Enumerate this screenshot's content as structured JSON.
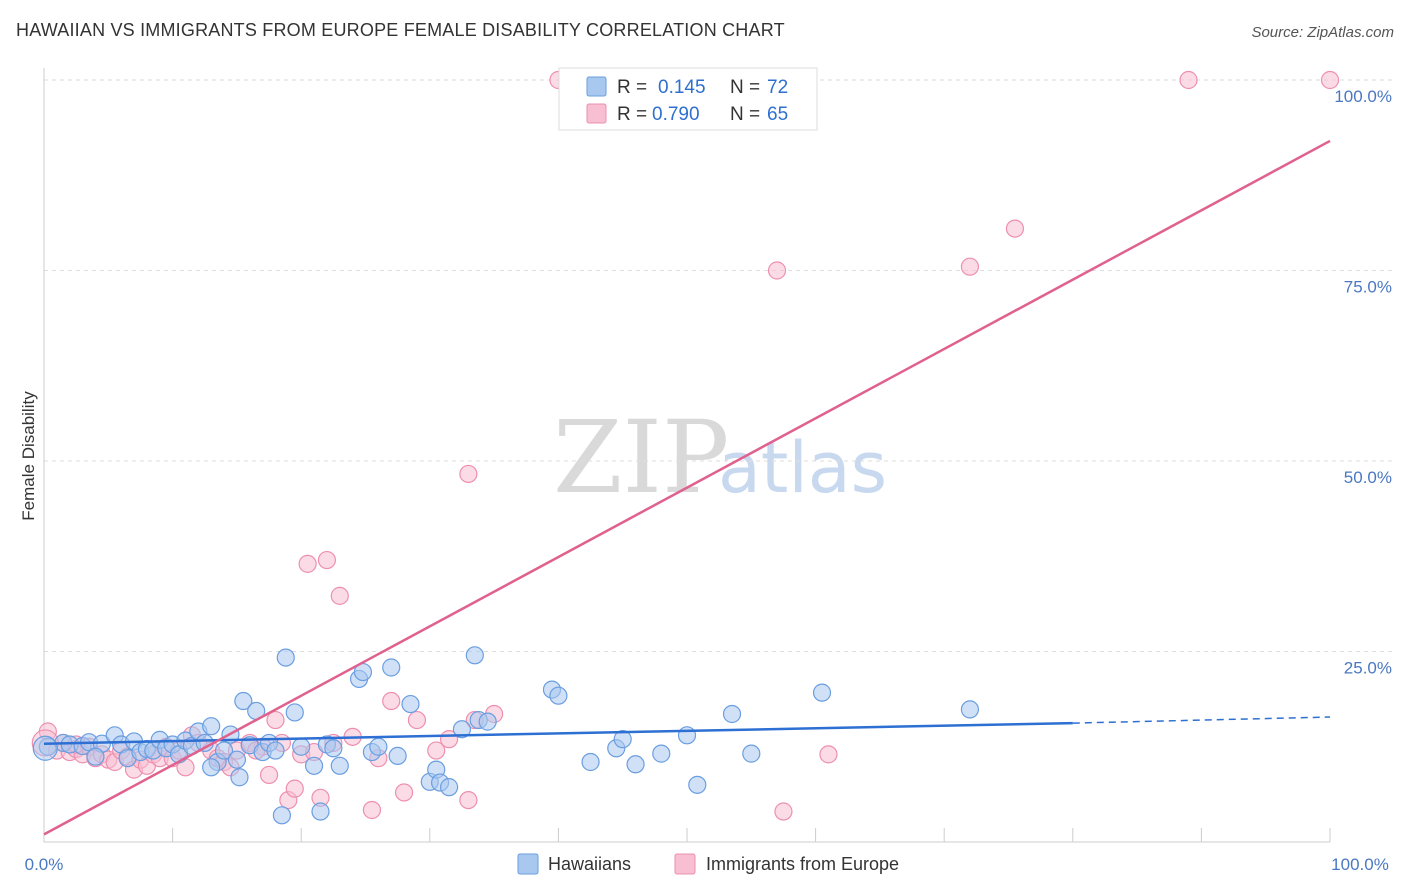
{
  "header": {
    "title": "HAWAIIAN VS IMMIGRANTS FROM EUROPE FEMALE DISABILITY CORRELATION CHART",
    "source": "Source: ZipAtlas.com"
  },
  "watermark": {
    "zip": "ZIP",
    "atlas": "atlas"
  },
  "colors": {
    "blue_fill": "#a9c8f0",
    "blue_stroke": "#6a9ee0",
    "blue_line": "#2d6fd2",
    "pink_fill": "#f7bfd1",
    "pink_stroke": "#ee8fb0",
    "pink_line": "#e0608e",
    "grid": "#dddddd",
    "tick_text": "#4a78c2"
  },
  "legend": {
    "rows": [
      {
        "r_label": "R =",
        "r_value": "0.145",
        "n_label": "N =",
        "n_value": "72"
      },
      {
        "r_label": "R =",
        "r_value": "0.790",
        "n_label": "N =",
        "n_value": "65"
      }
    ]
  },
  "bottom_legend": {
    "items": [
      {
        "label": "Hawaiians"
      },
      {
        "label": "Immigrants from Europe"
      }
    ]
  },
  "chart_data": {
    "type": "scatter",
    "title": "HAWAIIAN VS IMMIGRANTS FROM EUROPE FEMALE DISABILITY CORRELATION CHART",
    "xlabel": "",
    "ylabel": "Female Disability",
    "xlim": [
      0,
      100
    ],
    "ylim": [
      0,
      100
    ],
    "x_tick_labels": [
      "0.0%",
      "100.0%"
    ],
    "y_ticks": [
      {
        "value": 25,
        "label": "25.0%"
      },
      {
        "value": 50,
        "label": "50.0%"
      },
      {
        "value": 75,
        "label": "75.0%"
      },
      {
        "value": 100,
        "label": "100.0%"
      }
    ],
    "series": [
      {
        "name": "Hawaiians",
        "r": 0.145,
        "n": 72,
        "trend": {
          "x0": 0,
          "y0": 12.9,
          "x1": 80,
          "y1": 15.6,
          "dashed_to": 100,
          "dashed_y": 16.4
        },
        "points": [
          [
            0.3,
            12.5
          ],
          [
            1.5,
            13.0
          ],
          [
            2.0,
            12.8
          ],
          [
            3.0,
            12.6
          ],
          [
            3.5,
            13.1
          ],
          [
            4.5,
            12.9
          ],
          [
            5.5,
            14.0
          ],
          [
            6.0,
            12.8
          ],
          [
            6.5,
            11.0
          ],
          [
            7.0,
            13.2
          ],
          [
            7.5,
            11.8
          ],
          [
            8.0,
            12.2
          ],
          [
            8.5,
            12.0
          ],
          [
            9.0,
            13.4
          ],
          [
            9.5,
            12.3
          ],
          [
            10.0,
            12.8
          ],
          [
            10.5,
            11.5
          ],
          [
            11.0,
            13.3
          ],
          [
            11.5,
            12.6
          ],
          [
            12.0,
            14.5
          ],
          [
            12.5,
            13.0
          ],
          [
            13.0,
            15.2
          ],
          [
            13.5,
            10.5
          ],
          [
            14.0,
            12.0
          ],
          [
            14.5,
            14.1
          ],
          [
            15.0,
            10.8
          ],
          [
            15.5,
            18.5
          ],
          [
            16.0,
            12.7
          ],
          [
            16.5,
            17.2
          ],
          [
            17.0,
            11.8
          ],
          [
            17.5,
            13.0
          ],
          [
            18.0,
            12.0
          ],
          [
            18.8,
            24.2
          ],
          [
            19.5,
            17.0
          ],
          [
            20.0,
            12.5
          ],
          [
            21.0,
            10.0
          ],
          [
            22.0,
            12.8
          ],
          [
            22.5,
            12.3
          ],
          [
            23.0,
            10.0
          ],
          [
            24.5,
            21.4
          ],
          [
            24.8,
            22.3
          ],
          [
            25.5,
            11.8
          ],
          [
            27.0,
            22.9
          ],
          [
            27.5,
            11.3
          ],
          [
            28.5,
            18.1
          ],
          [
            30.0,
            7.9
          ],
          [
            30.5,
            9.5
          ],
          [
            30.8,
            7.8
          ],
          [
            31.5,
            7.2
          ],
          [
            32.5,
            14.8
          ],
          [
            33.5,
            24.5
          ],
          [
            33.8,
            16.0
          ],
          [
            34.5,
            15.8
          ],
          [
            39.5,
            20.0
          ],
          [
            40.0,
            19.2
          ],
          [
            42.5,
            10.5
          ],
          [
            44.5,
            12.3
          ],
          [
            45.0,
            13.5
          ],
          [
            46.0,
            10.2
          ],
          [
            48.0,
            11.6
          ],
          [
            50.0,
            14.0
          ],
          [
            50.8,
            7.5
          ],
          [
            53.5,
            16.8
          ],
          [
            55.0,
            11.6
          ],
          [
            60.5,
            19.6
          ],
          [
            72.0,
            17.4
          ],
          [
            13.0,
            9.8
          ],
          [
            15.2,
            8.5
          ],
          [
            18.5,
            3.5
          ],
          [
            21.5,
            4.0
          ],
          [
            26.0,
            12.5
          ],
          [
            4.0,
            11.2
          ]
        ]
      },
      {
        "name": "Immigrants from Europe",
        "r": 0.79,
        "n": 65,
        "trend": {
          "x0": 0,
          "y0": 1.0,
          "x1": 100,
          "y1": 92.0
        },
        "points": [
          [
            0.3,
            14.5
          ],
          [
            1.0,
            12.0
          ],
          [
            1.5,
            13.0
          ],
          [
            2.0,
            11.8
          ],
          [
            2.5,
            12.2
          ],
          [
            3.0,
            11.5
          ],
          [
            3.5,
            12.5
          ],
          [
            4.0,
            11.0
          ],
          [
            4.5,
            11.5
          ],
          [
            5.0,
            10.8
          ],
          [
            5.5,
            10.5
          ],
          [
            6.0,
            12.0
          ],
          [
            6.5,
            11.2
          ],
          [
            7.0,
            9.5
          ],
          [
            7.5,
            10.8
          ],
          [
            8.0,
            10.0
          ],
          [
            8.5,
            11.5
          ],
          [
            9.0,
            11.0
          ],
          [
            9.5,
            12.5
          ],
          [
            10.0,
            11.0
          ],
          [
            10.5,
            12.0
          ],
          [
            11.0,
            9.8
          ],
          [
            11.5,
            14.0
          ],
          [
            12.0,
            13.0
          ],
          [
            13.0,
            12.0
          ],
          [
            13.5,
            11.0
          ],
          [
            14.0,
            10.5
          ],
          [
            14.5,
            9.8
          ],
          [
            15.0,
            12.0
          ],
          [
            16.0,
            13.0
          ],
          [
            17.0,
            12.5
          ],
          [
            17.5,
            8.8
          ],
          [
            18.0,
            16.0
          ],
          [
            18.5,
            13.0
          ],
          [
            19.0,
            5.5
          ],
          [
            19.5,
            7.0
          ],
          [
            20.0,
            11.5
          ],
          [
            21.0,
            11.8
          ],
          [
            21.5,
            5.8
          ],
          [
            22.5,
            13.0
          ],
          [
            23.0,
            32.3
          ],
          [
            22.0,
            37.0
          ],
          [
            20.5,
            36.5
          ],
          [
            24.0,
            13.8
          ],
          [
            25.5,
            4.2
          ],
          [
            26.0,
            11.0
          ],
          [
            27.0,
            18.5
          ],
          [
            28.0,
            6.5
          ],
          [
            29.0,
            16.0
          ],
          [
            30.5,
            12.0
          ],
          [
            31.5,
            13.5
          ],
          [
            33.0,
            5.5
          ],
          [
            33.5,
            16.0
          ],
          [
            35.0,
            16.8
          ],
          [
            33.0,
            48.3
          ],
          [
            40.0,
            100.0
          ],
          [
            57.0,
            75.0
          ],
          [
            61.0,
            11.5
          ],
          [
            57.5,
            4.0
          ],
          [
            72.0,
            75.5
          ],
          [
            75.5,
            80.5
          ],
          [
            89.0,
            100.0
          ],
          [
            100.0,
            100.0
          ],
          [
            16.5,
            12.0
          ],
          [
            2.5,
            12.8
          ]
        ]
      }
    ]
  }
}
